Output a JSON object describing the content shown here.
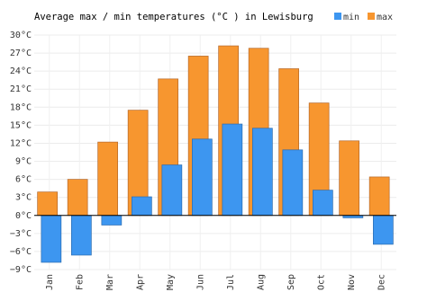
{
  "chart_data": {
    "type": "bar",
    "title": "Average max / min temperatures (°C ) in Lewisburg",
    "categories": [
      "Jan",
      "Feb",
      "Mar",
      "Apr",
      "May",
      "Jun",
      "Jul",
      "Aug",
      "Sep",
      "Oct",
      "Nov",
      "Dec"
    ],
    "series": [
      {
        "name": "min",
        "color": "#3d96f0",
        "values": [
          -7.8,
          -6.6,
          -1.6,
          3.1,
          8.4,
          12.7,
          15.2,
          14.5,
          10.9,
          4.2,
          -0.4,
          -4.8
        ]
      },
      {
        "name": "max",
        "color": "#f7962f",
        "values": [
          3.9,
          6.0,
          12.2,
          17.5,
          22.7,
          26.5,
          28.2,
          27.8,
          24.4,
          18.7,
          12.4,
          6.4
        ]
      }
    ],
    "ylim": [
      -9,
      30
    ],
    "yticks": [
      {
        "value": -9,
        "label": "−9°C"
      },
      {
        "value": -6,
        "label": "−6°C"
      },
      {
        "value": -3,
        "label": "−3°C"
      },
      {
        "value": 0,
        "label": "0°C"
      },
      {
        "value": 3,
        "label": "3°C"
      },
      {
        "value": 6,
        "label": "6°C"
      },
      {
        "value": 9,
        "label": "9°C"
      },
      {
        "value": 12,
        "label": "12°C"
      },
      {
        "value": 15,
        "label": "15°C"
      },
      {
        "value": 18,
        "label": "18°C"
      },
      {
        "value": 21,
        "label": "21°C"
      },
      {
        "value": 24,
        "label": "24°C"
      },
      {
        "value": 27,
        "label": "27°C"
      },
      {
        "value": 30,
        "label": "30°C"
      }
    ],
    "grid": true,
    "legend": "top-right"
  }
}
